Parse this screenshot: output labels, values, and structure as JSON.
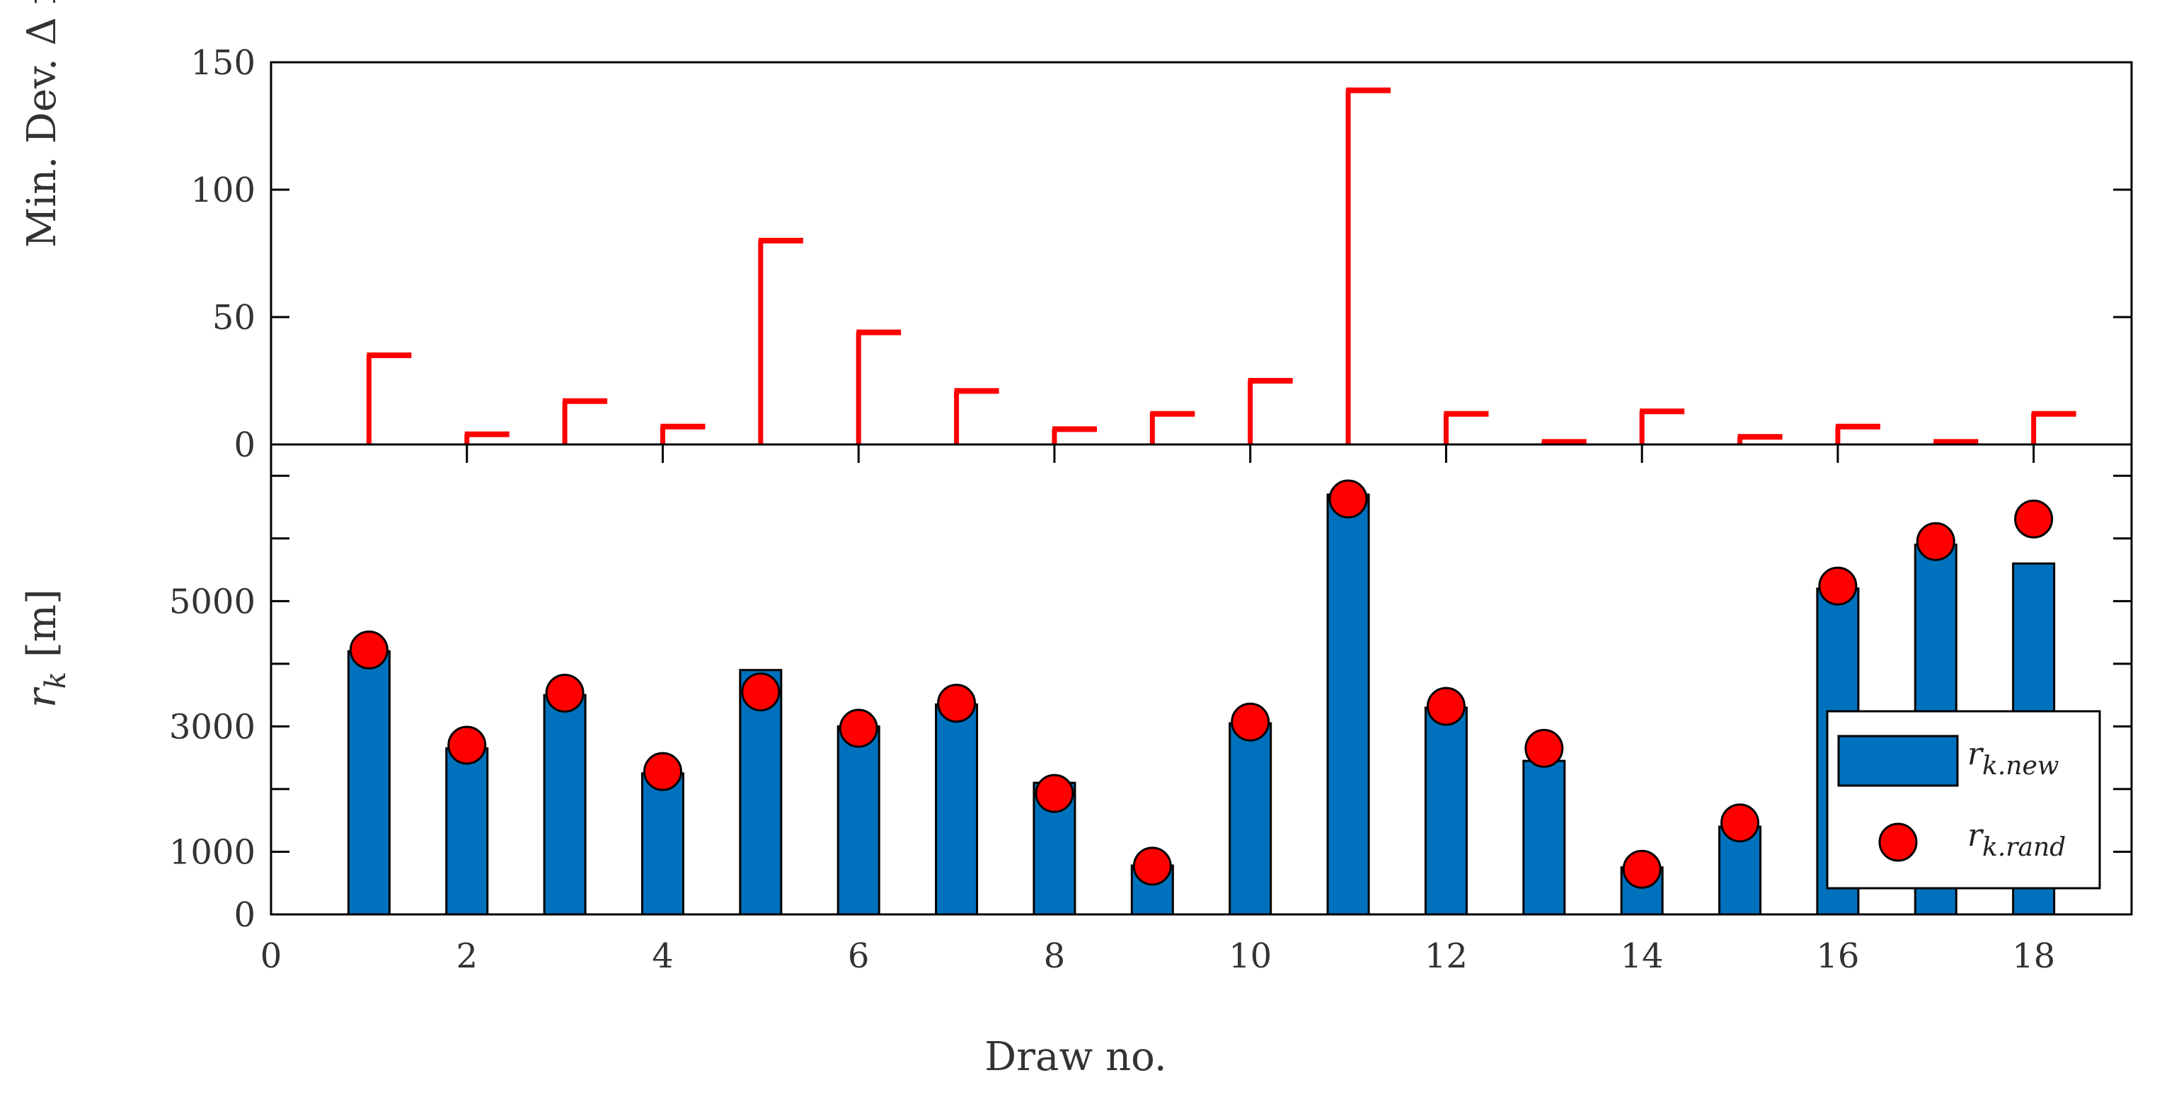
{
  "chart_data": [
    {
      "type": "bar",
      "panel": "top",
      "ylabel_main": "Min. Dev. Δ r",
      "ylabel_sub": "k",
      "ylim": [
        0,
        150
      ],
      "yticks": [
        0,
        50,
        100,
        150
      ],
      "x": [
        1,
        2,
        3,
        4,
        5,
        6,
        7,
        8,
        9,
        10,
        11,
        12,
        13,
        14,
        15,
        16,
        17,
        18
      ],
      "series": [
        {
          "values": [
            35,
            4,
            17,
            7,
            80,
            44,
            21,
            6,
            12,
            25,
            139,
            12,
            1,
            13,
            3,
            7,
            1,
            12
          ],
          "color": "#ff0000"
        }
      ]
    },
    {
      "type": "bar",
      "panel": "bottom",
      "ylabel_main": "r",
      "ylabel_sub": "k",
      "ylabel_unit": "[m]",
      "ylim": [
        0,
        7500
      ],
      "ytick_values": [
        0,
        1000,
        2000,
        3000,
        4000,
        5000,
        6000,
        7000
      ],
      "ytick_labels": [
        "0",
        "1000",
        "",
        "3000",
        "",
        "5000",
        "",
        ""
      ],
      "xlabel": "Draw no.",
      "xlim": [
        0,
        19
      ],
      "xticks": [
        0,
        2,
        4,
        6,
        8,
        10,
        12,
        14,
        16,
        18
      ],
      "x": [
        1,
        2,
        3,
        4,
        5,
        6,
        7,
        8,
        9,
        10,
        11,
        12,
        13,
        14,
        15,
        16,
        17,
        18
      ],
      "series": [
        {
          "name": "r",
          "sub": "k.new",
          "kind": "bar",
          "color": "#0072bd",
          "values": [
            4200,
            2650,
            3500,
            2250,
            3900,
            3000,
            3350,
            2100,
            780,
            3050,
            6700,
            3300,
            2450,
            750,
            1400,
            5200,
            5900,
            5600
          ]
        },
        {
          "name": "r",
          "sub": "k.rand",
          "kind": "marker",
          "color": "#ff0000",
          "values": [
            4220,
            2700,
            3530,
            2280,
            3550,
            2970,
            3370,
            1930,
            770,
            3070,
            6630,
            3320,
            2650,
            720,
            1460,
            5240,
            5950,
            6310
          ]
        }
      ],
      "legend_position": "lower-right"
    }
  ],
  "colors": {
    "bar": "#0072bd",
    "marker": "#ff0000",
    "axis": "#000000",
    "text": "#333333"
  }
}
